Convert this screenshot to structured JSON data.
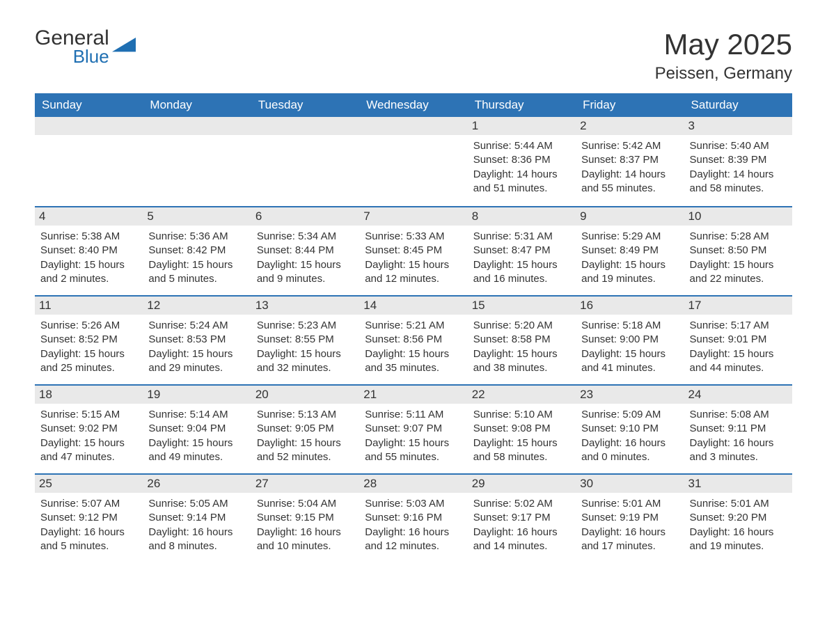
{
  "logo": {
    "word1": "General",
    "word2": "Blue"
  },
  "title": "May 2025",
  "location": "Peissen, Germany",
  "colors": {
    "header_bg": "#2d73b5",
    "header_text": "#ffffff",
    "daynum_bg": "#e9e9e9",
    "text": "#333333",
    "logo_blue": "#1f6fb2",
    "background": "#ffffff"
  },
  "weekdays": [
    "Sunday",
    "Monday",
    "Tuesday",
    "Wednesday",
    "Thursday",
    "Friday",
    "Saturday"
  ],
  "weeks": [
    [
      {
        "day": "",
        "sunrise": "",
        "sunset": "",
        "daylight": ""
      },
      {
        "day": "",
        "sunrise": "",
        "sunset": "",
        "daylight": ""
      },
      {
        "day": "",
        "sunrise": "",
        "sunset": "",
        "daylight": ""
      },
      {
        "day": "",
        "sunrise": "",
        "sunset": "",
        "daylight": ""
      },
      {
        "day": "1",
        "sunrise": "Sunrise: 5:44 AM",
        "sunset": "Sunset: 8:36 PM",
        "daylight": "Daylight: 14 hours and 51 minutes."
      },
      {
        "day": "2",
        "sunrise": "Sunrise: 5:42 AM",
        "sunset": "Sunset: 8:37 PM",
        "daylight": "Daylight: 14 hours and 55 minutes."
      },
      {
        "day": "3",
        "sunrise": "Sunrise: 5:40 AM",
        "sunset": "Sunset: 8:39 PM",
        "daylight": "Daylight: 14 hours and 58 minutes."
      }
    ],
    [
      {
        "day": "4",
        "sunrise": "Sunrise: 5:38 AM",
        "sunset": "Sunset: 8:40 PM",
        "daylight": "Daylight: 15 hours and 2 minutes."
      },
      {
        "day": "5",
        "sunrise": "Sunrise: 5:36 AM",
        "sunset": "Sunset: 8:42 PM",
        "daylight": "Daylight: 15 hours and 5 minutes."
      },
      {
        "day": "6",
        "sunrise": "Sunrise: 5:34 AM",
        "sunset": "Sunset: 8:44 PM",
        "daylight": "Daylight: 15 hours and 9 minutes."
      },
      {
        "day": "7",
        "sunrise": "Sunrise: 5:33 AM",
        "sunset": "Sunset: 8:45 PM",
        "daylight": "Daylight: 15 hours and 12 minutes."
      },
      {
        "day": "8",
        "sunrise": "Sunrise: 5:31 AM",
        "sunset": "Sunset: 8:47 PM",
        "daylight": "Daylight: 15 hours and 16 minutes."
      },
      {
        "day": "9",
        "sunrise": "Sunrise: 5:29 AM",
        "sunset": "Sunset: 8:49 PM",
        "daylight": "Daylight: 15 hours and 19 minutes."
      },
      {
        "day": "10",
        "sunrise": "Sunrise: 5:28 AM",
        "sunset": "Sunset: 8:50 PM",
        "daylight": "Daylight: 15 hours and 22 minutes."
      }
    ],
    [
      {
        "day": "11",
        "sunrise": "Sunrise: 5:26 AM",
        "sunset": "Sunset: 8:52 PM",
        "daylight": "Daylight: 15 hours and 25 minutes."
      },
      {
        "day": "12",
        "sunrise": "Sunrise: 5:24 AM",
        "sunset": "Sunset: 8:53 PM",
        "daylight": "Daylight: 15 hours and 29 minutes."
      },
      {
        "day": "13",
        "sunrise": "Sunrise: 5:23 AM",
        "sunset": "Sunset: 8:55 PM",
        "daylight": "Daylight: 15 hours and 32 minutes."
      },
      {
        "day": "14",
        "sunrise": "Sunrise: 5:21 AM",
        "sunset": "Sunset: 8:56 PM",
        "daylight": "Daylight: 15 hours and 35 minutes."
      },
      {
        "day": "15",
        "sunrise": "Sunrise: 5:20 AM",
        "sunset": "Sunset: 8:58 PM",
        "daylight": "Daylight: 15 hours and 38 minutes."
      },
      {
        "day": "16",
        "sunrise": "Sunrise: 5:18 AM",
        "sunset": "Sunset: 9:00 PM",
        "daylight": "Daylight: 15 hours and 41 minutes."
      },
      {
        "day": "17",
        "sunrise": "Sunrise: 5:17 AM",
        "sunset": "Sunset: 9:01 PM",
        "daylight": "Daylight: 15 hours and 44 minutes."
      }
    ],
    [
      {
        "day": "18",
        "sunrise": "Sunrise: 5:15 AM",
        "sunset": "Sunset: 9:02 PM",
        "daylight": "Daylight: 15 hours and 47 minutes."
      },
      {
        "day": "19",
        "sunrise": "Sunrise: 5:14 AM",
        "sunset": "Sunset: 9:04 PM",
        "daylight": "Daylight: 15 hours and 49 minutes."
      },
      {
        "day": "20",
        "sunrise": "Sunrise: 5:13 AM",
        "sunset": "Sunset: 9:05 PM",
        "daylight": "Daylight: 15 hours and 52 minutes."
      },
      {
        "day": "21",
        "sunrise": "Sunrise: 5:11 AM",
        "sunset": "Sunset: 9:07 PM",
        "daylight": "Daylight: 15 hours and 55 minutes."
      },
      {
        "day": "22",
        "sunrise": "Sunrise: 5:10 AM",
        "sunset": "Sunset: 9:08 PM",
        "daylight": "Daylight: 15 hours and 58 minutes."
      },
      {
        "day": "23",
        "sunrise": "Sunrise: 5:09 AM",
        "sunset": "Sunset: 9:10 PM",
        "daylight": "Daylight: 16 hours and 0 minutes."
      },
      {
        "day": "24",
        "sunrise": "Sunrise: 5:08 AM",
        "sunset": "Sunset: 9:11 PM",
        "daylight": "Daylight: 16 hours and 3 minutes."
      }
    ],
    [
      {
        "day": "25",
        "sunrise": "Sunrise: 5:07 AM",
        "sunset": "Sunset: 9:12 PM",
        "daylight": "Daylight: 16 hours and 5 minutes."
      },
      {
        "day": "26",
        "sunrise": "Sunrise: 5:05 AM",
        "sunset": "Sunset: 9:14 PM",
        "daylight": "Daylight: 16 hours and 8 minutes."
      },
      {
        "day": "27",
        "sunrise": "Sunrise: 5:04 AM",
        "sunset": "Sunset: 9:15 PM",
        "daylight": "Daylight: 16 hours and 10 minutes."
      },
      {
        "day": "28",
        "sunrise": "Sunrise: 5:03 AM",
        "sunset": "Sunset: 9:16 PM",
        "daylight": "Daylight: 16 hours and 12 minutes."
      },
      {
        "day": "29",
        "sunrise": "Sunrise: 5:02 AM",
        "sunset": "Sunset: 9:17 PM",
        "daylight": "Daylight: 16 hours and 14 minutes."
      },
      {
        "day": "30",
        "sunrise": "Sunrise: 5:01 AM",
        "sunset": "Sunset: 9:19 PM",
        "daylight": "Daylight: 16 hours and 17 minutes."
      },
      {
        "day": "31",
        "sunrise": "Sunrise: 5:01 AM",
        "sunset": "Sunset: 9:20 PM",
        "daylight": "Daylight: 16 hours and 19 minutes."
      }
    ]
  ]
}
